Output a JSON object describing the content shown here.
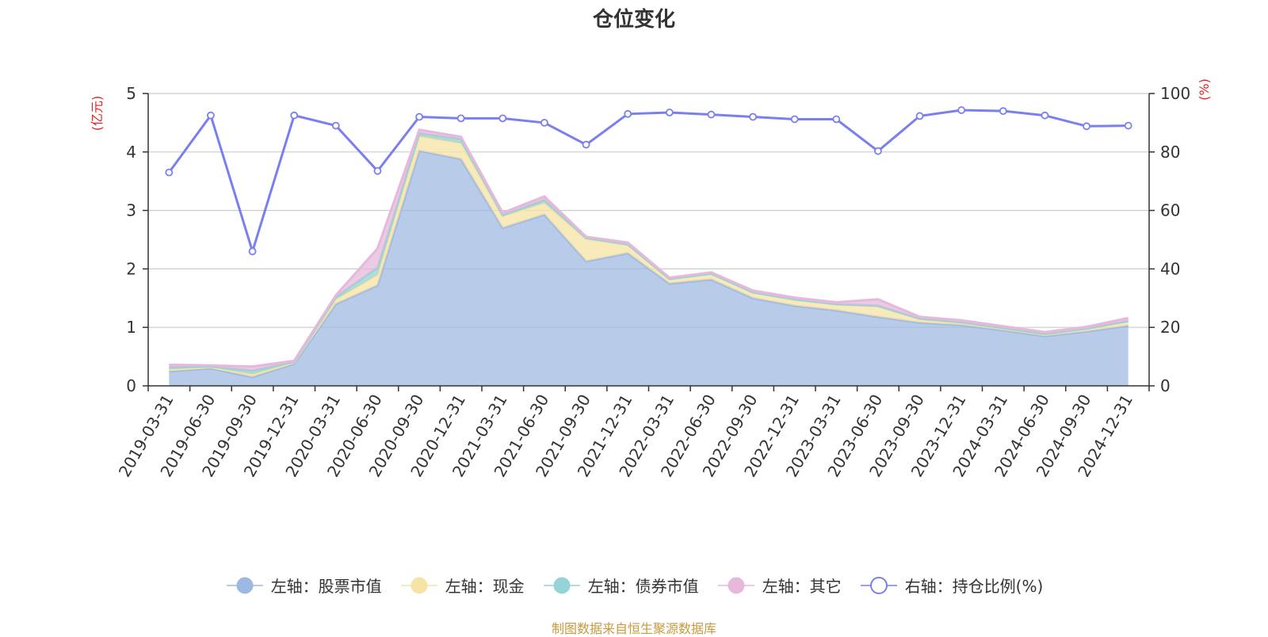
{
  "chart_data": {
    "type": "area",
    "title": "仓位变化",
    "left_axis_label": "(亿元)",
    "right_axis_label": "(%)",
    "left_ylim": [
      0,
      5
    ],
    "left_ticks": [
      "0",
      "1",
      "2",
      "3",
      "4",
      "5"
    ],
    "right_ylim": [
      0,
      100
    ],
    "right_ticks": [
      "0",
      "20",
      "40",
      "60",
      "80",
      "100"
    ],
    "categories": [
      "2019-03-31",
      "2019-06-30",
      "2019-09-30",
      "2019-12-31",
      "2020-03-31",
      "2020-06-30",
      "2020-09-30",
      "2020-12-31",
      "2021-03-31",
      "2021-06-30",
      "2021-09-30",
      "2021-12-31",
      "2022-03-31",
      "2022-06-30",
      "2022-09-30",
      "2022-12-31",
      "2023-03-31",
      "2023-06-30",
      "2023-09-30",
      "2023-12-31",
      "2024-03-31",
      "2024-06-30",
      "2024-09-30",
      "2024-12-31"
    ],
    "stacked_series": [
      {
        "name": "左轴：股票市值",
        "axis": "left",
        "color": "#9db8e2",
        "values": [
          0.25,
          0.3,
          0.15,
          0.38,
          1.4,
          1.72,
          4.02,
          3.88,
          2.7,
          2.93,
          2.13,
          2.27,
          1.75,
          1.82,
          1.5,
          1.37,
          1.29,
          1.18,
          1.08,
          1.04,
          0.95,
          0.85,
          0.93,
          1.03
        ]
      },
      {
        "name": "左轴：现金",
        "axis": "left",
        "color": "#f7e3a4",
        "values": [
          0.03,
          0.02,
          0.05,
          0.02,
          0.08,
          0.18,
          0.25,
          0.27,
          0.2,
          0.2,
          0.38,
          0.14,
          0.07,
          0.09,
          0.09,
          0.1,
          0.1,
          0.18,
          0.06,
          0.04,
          0.04,
          0.04,
          0.05,
          0.07
        ]
      },
      {
        "name": "左轴：债券市值",
        "axis": "left",
        "color": "#96d3d6",
        "values": [
          0.04,
          0.01,
          0.06,
          0.01,
          0.04,
          0.12,
          0.05,
          0.07,
          0.02,
          0.05,
          0.02,
          0.01,
          0.01,
          0.01,
          0.01,
          0.01,
          0.01,
          0.01,
          0.01,
          0.01,
          0.0,
          0.0,
          0.0,
          0.01
        ]
      },
      {
        "name": "左轴：其它",
        "axis": "left",
        "color": "#e6b8dc",
        "values": [
          0.04,
          0.02,
          0.07,
          0.02,
          0.03,
          0.33,
          0.06,
          0.04,
          0.04,
          0.06,
          0.02,
          0.03,
          0.02,
          0.02,
          0.03,
          0.03,
          0.03,
          0.11,
          0.03,
          0.03,
          0.03,
          0.03,
          0.03,
          0.05
        ]
      }
    ],
    "line_series": {
      "name": "右轴：持仓比例(%)",
      "axis": "right",
      "color": "#7a7ff0",
      "values": [
        73.0,
        92.5,
        46.0,
        92.5,
        89.0,
        73.5,
        92.0,
        91.5,
        91.5,
        90.0,
        82.5,
        93.0,
        93.5,
        92.8,
        92.0,
        91.2,
        91.2,
        80.3,
        92.3,
        94.3,
        94.0,
        92.5,
        88.8,
        89.0
      ]
    },
    "legend_position": "bottom",
    "grid": true
  },
  "footer": {
    "source": "制图数据来自恒生聚源数据库"
  }
}
